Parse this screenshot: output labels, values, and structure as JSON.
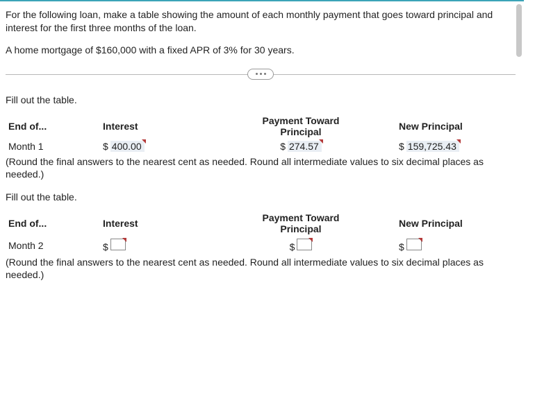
{
  "intro_text": "For the following loan, make a table showing the amount of each monthly payment that goes toward principal and interest for the first three months of the loan.",
  "loan_desc": "A home mortgage of $160,000 with a fixed APR of 3% for 30 years.",
  "fill_prompt": "Fill out the table.",
  "headers": {
    "end_of": "End of...",
    "interest": "Interest",
    "ptp_line1": "Payment Toward",
    "ptp_line2": "Principal",
    "new_principal": "New Principal"
  },
  "table1": {
    "month_label": "Month 1",
    "interest_value": "400.00",
    "ptp_value": "274.57",
    "np_value": "159,725.43"
  },
  "table2": {
    "month_label": "Month 2"
  },
  "round_note": "(Round the final answers to the nearest cent as needed. Round all intermediate values to six decimal places as needed.)",
  "currency": "$"
}
